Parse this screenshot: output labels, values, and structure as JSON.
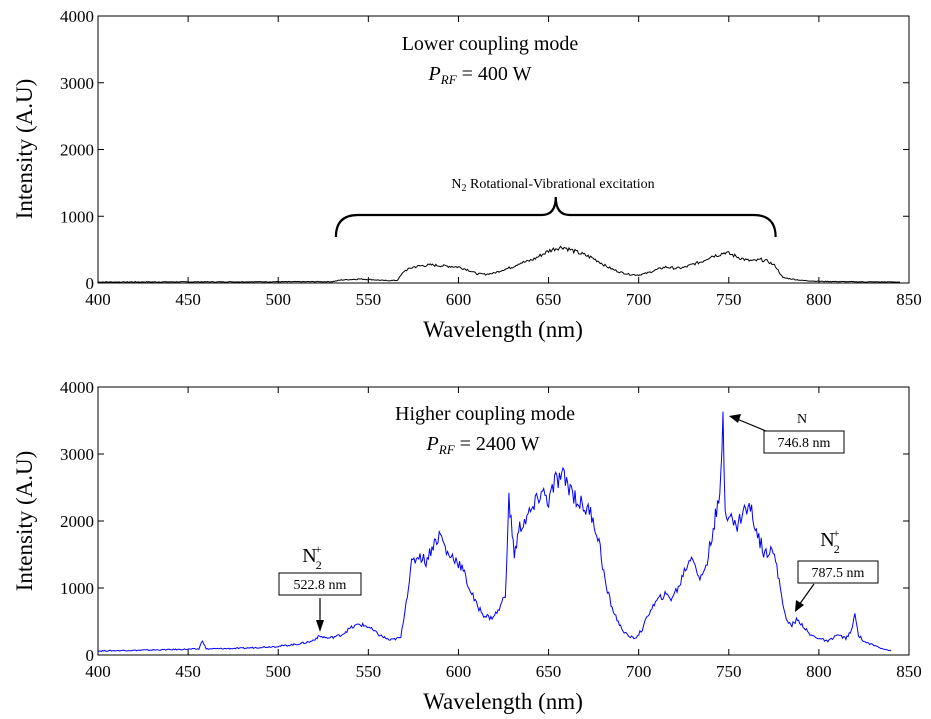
{
  "chart_data": [
    {
      "type": "line",
      "xlabel": "Wavelength (nm)",
      "ylabel": "Intensity (A.U)",
      "xlim": [
        400,
        850
      ],
      "ylim": [
        0,
        4000
      ],
      "x_ticks": [
        "400",
        "450",
        "500",
        "550",
        "600",
        "650",
        "700",
        "750",
        "800",
        "850"
      ],
      "y_ticks": [
        "0",
        "1000",
        "2000",
        "3000",
        "4000"
      ],
      "title_line1": "Lower coupling mode",
      "title_line2_sym": "P",
      "title_line2_sub": "RF",
      "title_line2_val": " = 400 W",
      "brace_label_main": "N",
      "brace_label_sub": "2",
      "brace_label_rest": " Rotational-Vibrational excitation",
      "brace_range": [
        532,
        776
      ],
      "color": "#000000",
      "series": [
        {
          "x": [
            400,
            530,
            535,
            545,
            552,
            560,
            566,
            570,
            575,
            580,
            585,
            590,
            595,
            600,
            605,
            610,
            615,
            620,
            625,
            630,
            634,
            638,
            642,
            646,
            650,
            654,
            658,
            662,
            666,
            670,
            674,
            678,
            682,
            686,
            690,
            695,
            700,
            705,
            710,
            715,
            720,
            725,
            730,
            735,
            740,
            744,
            748,
            752,
            756,
            760,
            764,
            768,
            772,
            776,
            780,
            790,
            800,
            820,
            845
          ],
          "y": [
            15,
            20,
            45,
            60,
            50,
            35,
            40,
            180,
            240,
            260,
            270,
            260,
            250,
            240,
            200,
            140,
            130,
            150,
            200,
            240,
            300,
            320,
            360,
            420,
            480,
            520,
            540,
            500,
            460,
            420,
            380,
            320,
            250,
            200,
            160,
            130,
            120,
            150,
            200,
            240,
            220,
            230,
            280,
            320,
            400,
            420,
            460,
            420,
            380,
            340,
            330,
            350,
            320,
            250,
            80,
            40,
            25,
            18,
            15
          ]
        }
      ]
    },
    {
      "type": "line",
      "xlabel": "Wavelength (nm)",
      "ylabel": "Intensity (A.U)",
      "xlim": [
        400,
        850
      ],
      "ylim": [
        0,
        4000
      ],
      "x_ticks": [
        "400",
        "450",
        "500",
        "550",
        "600",
        "650",
        "700",
        "750",
        "800",
        "850"
      ],
      "y_ticks": [
        "0",
        "1000",
        "2000",
        "3000",
        "4000"
      ],
      "title_line1": "Higher coupling mode",
      "title_line2_sym": "P",
      "title_line2_sub": "RF",
      "title_line2_val": " = 2400 W",
      "color": "#0000ff",
      "annotations": [
        {
          "species_main": "N",
          "species_sub": "2",
          "species_sup": "+",
          "label": "522.8 nm",
          "x": 522.8,
          "y": 280
        },
        {
          "species_main": "N",
          "species_sub": "",
          "species_sup": "",
          "label": "746.8 nm",
          "x": 746.8,
          "y": 3560
        },
        {
          "species_main": "N",
          "species_sub": "2",
          "species_sup": "+",
          "label": "787.5 nm",
          "x": 787.5,
          "y": 520
        }
      ],
      "series": [
        {
          "x": [
            400,
            420,
            440,
            456,
            458,
            460,
            480,
            500,
            510,
            518,
            522.8,
            528,
            535,
            540,
            545,
            550,
            556,
            562,
            568,
            571,
            574,
            578,
            582,
            586,
            590,
            594,
            598,
            602,
            606,
            610,
            614,
            618,
            622,
            626,
            628,
            631,
            634,
            638,
            642,
            646,
            650,
            654,
            658,
            662,
            666,
            670,
            674,
            678,
            682,
            686,
            690,
            694,
            698,
            702,
            706,
            710,
            714,
            718,
            722,
            726,
            730,
            734,
            738,
            742,
            745,
            746.8,
            748,
            750,
            754,
            758,
            762,
            766,
            770,
            774,
            778,
            782,
            785,
            787.5,
            790,
            795,
            800,
            805,
            810,
            815,
            818,
            820,
            822,
            825,
            830,
            835,
            840
          ],
          "y": [
            60,
            70,
            80,
            90,
            220,
            90,
            100,
            130,
            160,
            200,
            280,
            250,
            300,
            400,
            460,
            420,
            300,
            220,
            260,
            800,
            1350,
            1500,
            1400,
            1650,
            1800,
            1500,
            1450,
            1300,
            1000,
            750,
            600,
            550,
            650,
            900,
            2300,
            1500,
            1900,
            2050,
            2200,
            2450,
            2300,
            2600,
            2650,
            2500,
            2300,
            2200,
            2100,
            1700,
            1000,
            650,
            420,
            280,
            250,
            380,
            650,
            800,
            900,
            850,
            1000,
            1300,
            1500,
            1100,
            1400,
            2000,
            2300,
            3560,
            2200,
            2100,
            1900,
            2150,
            2200,
            1800,
            1500,
            1650,
            1100,
            500,
            450,
            520,
            480,
            300,
            250,
            200,
            300,
            250,
            350,
            600,
            300,
            200,
            150,
            100,
            60
          ]
        }
      ]
    }
  ]
}
